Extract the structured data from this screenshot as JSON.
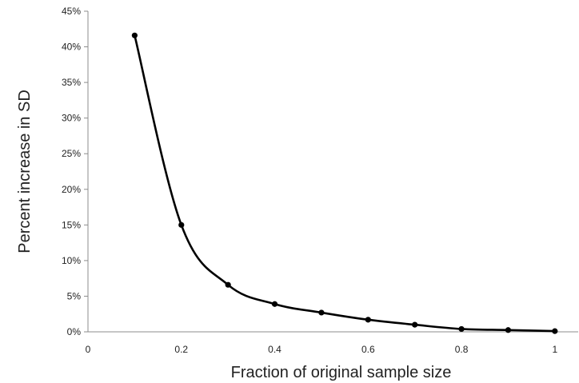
{
  "chart_data": {
    "type": "line",
    "title": "",
    "xlabel": "Fraction of original sample size",
    "ylabel": "Percent increase in SD",
    "xlim": [
      0,
      1.05
    ],
    "ylim": [
      0,
      45
    ],
    "x_ticks": [
      0,
      0.2,
      0.4,
      0.6,
      0.8,
      1
    ],
    "x_tick_labels": [
      "0",
      "0.2",
      "0.4",
      "0.6",
      "0.8",
      "1"
    ],
    "y_ticks": [
      0,
      5,
      10,
      15,
      20,
      25,
      30,
      35,
      40,
      45
    ],
    "y_tick_labels": [
      "0%",
      "5%",
      "10%",
      "15%",
      "20%",
      "25%",
      "30%",
      "35%",
      "40%",
      "45%"
    ],
    "grid": false,
    "legend": "none",
    "smooth": true,
    "series": [
      {
        "color": "#000000",
        "x": [
          0.1,
          0.2,
          0.3,
          0.4,
          0.5,
          0.6,
          0.7,
          0.8,
          0.9,
          1.0
        ],
        "y": [
          41.6,
          15.0,
          6.6,
          3.9,
          2.7,
          1.7,
          1.0,
          0.4,
          0.25,
          0.1
        ]
      }
    ]
  }
}
